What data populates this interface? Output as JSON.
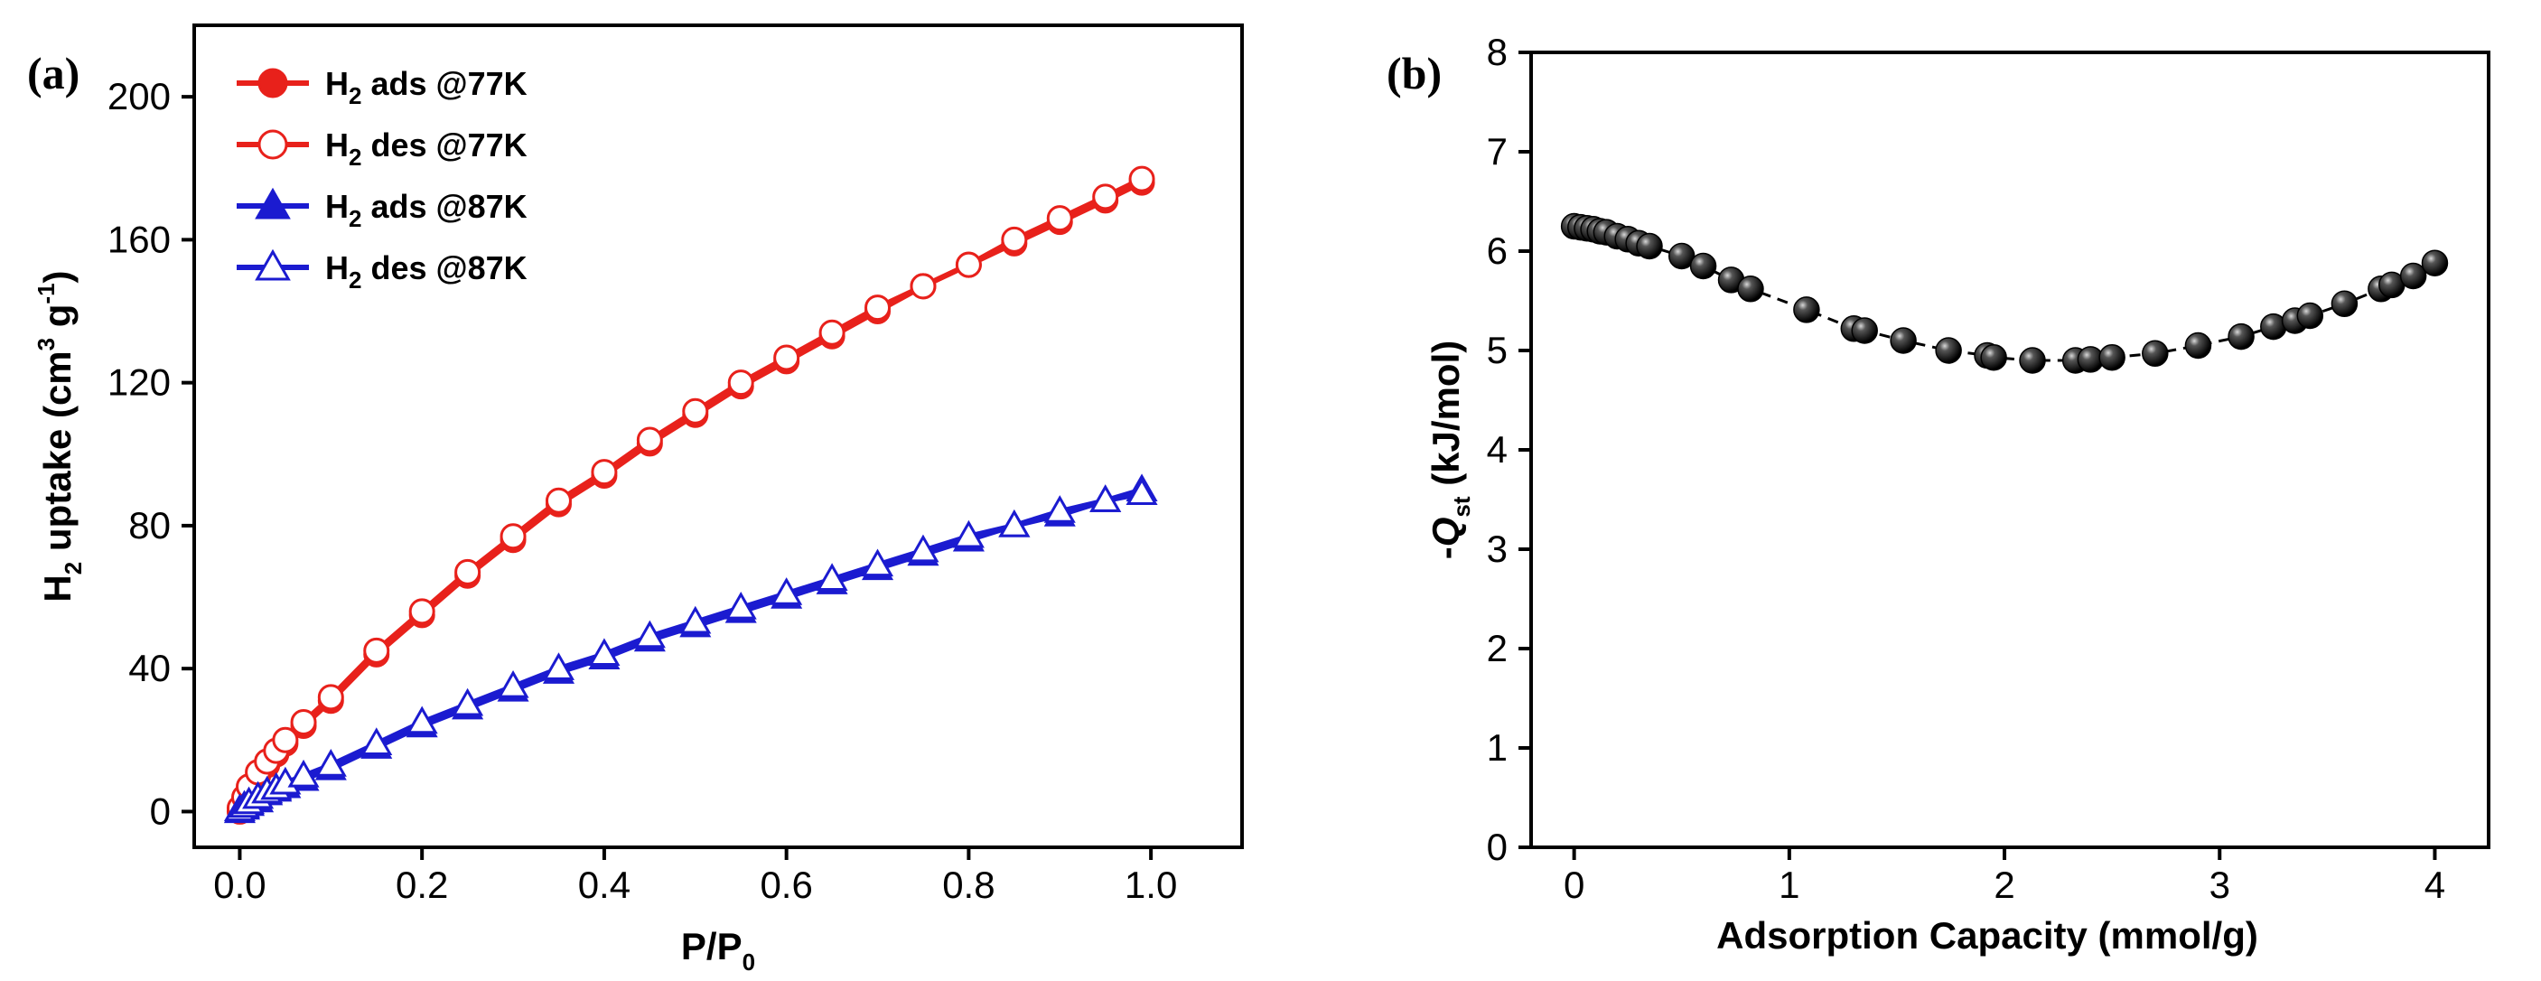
{
  "chart_data": [
    {
      "panel": "(a)",
      "type": "line",
      "xlabel": "P/P",
      "xlabel_sub": "0",
      "ylabel_main": "H",
      "ylabel_sub": "2",
      "ylabel_rest": " uptake (cm",
      "ylabel_sup": "3",
      "ylabel_unit": " g",
      "ylabel_sup2": "-1",
      "ylabel_close": ")",
      "xlim": [
        -0.05,
        1.1
      ],
      "ylim": [
        -10,
        220
      ],
      "xticks": [
        "0.0",
        "0.2",
        "0.4",
        "0.6",
        "0.8",
        "1.0"
      ],
      "yticks": [
        "0",
        "40",
        "80",
        "120",
        "160",
        "200"
      ],
      "series": [
        {
          "name_main": "H",
          "name_sub": "2",
          "name_rest": " ads @77K",
          "color": "#e8211b",
          "marker": "circle",
          "filled": true,
          "x": [
            0.0,
            0.005,
            0.01,
            0.02,
            0.03,
            0.04,
            0.05,
            0.07,
            0.1,
            0.15,
            0.2,
            0.25,
            0.3,
            0.35,
            0.4,
            0.45,
            0.5,
            0.55,
            0.6,
            0.65,
            0.7,
            0.75,
            0.8,
            0.85,
            0.9,
            0.95,
            0.99
          ],
          "y": [
            0,
            3,
            6,
            10,
            13,
            16,
            19,
            24,
            31,
            44,
            55,
            66,
            76,
            86,
            94,
            103,
            111,
            119,
            126,
            133,
            140,
            147,
            153,
            159,
            165,
            171,
            176
          ]
        },
        {
          "name_main": "H",
          "name_sub": "2",
          "name_rest": " des @77K",
          "color": "#e8211b",
          "marker": "circle",
          "filled": false,
          "x": [
            0.0,
            0.005,
            0.01,
            0.02,
            0.03,
            0.04,
            0.05,
            0.07,
            0.1,
            0.15,
            0.2,
            0.25,
            0.3,
            0.35,
            0.4,
            0.45,
            0.5,
            0.55,
            0.6,
            0.65,
            0.7,
            0.75,
            0.8,
            0.85,
            0.9,
            0.95,
            0.99
          ],
          "y": [
            1,
            4,
            7,
            11,
            14,
            17,
            20,
            25,
            32,
            45,
            56,
            67,
            77,
            87,
            95,
            104,
            112,
            120,
            127,
            134,
            141,
            147,
            153,
            160,
            166,
            172,
            177
          ]
        },
        {
          "name_main": "H",
          "name_sub": "2",
          "name_rest": " ads @87K",
          "color": "#1b1bd0",
          "marker": "triangle",
          "filled": true,
          "x": [
            0.0,
            0.005,
            0.01,
            0.02,
            0.03,
            0.04,
            0.05,
            0.07,
            0.1,
            0.15,
            0.2,
            0.25,
            0.3,
            0.35,
            0.4,
            0.45,
            0.5,
            0.55,
            0.6,
            0.65,
            0.7,
            0.75,
            0.8,
            0.85,
            0.9,
            0.95,
            0.99
          ],
          "y": [
            0,
            1,
            2,
            3,
            5,
            6,
            7,
            9,
            12,
            18,
            24,
            29,
            34,
            39,
            43,
            48,
            52,
            56,
            60,
            64,
            68,
            72,
            76,
            80,
            83,
            87,
            90
          ]
        },
        {
          "name_main": "H",
          "name_sub": "2",
          "name_rest": " des @87K",
          "color": "#1b1bd0",
          "marker": "triangle",
          "filled": false,
          "x": [
            0.0,
            0.005,
            0.01,
            0.02,
            0.03,
            0.04,
            0.05,
            0.07,
            0.1,
            0.15,
            0.2,
            0.25,
            0.3,
            0.35,
            0.4,
            0.45,
            0.5,
            0.55,
            0.6,
            0.65,
            0.7,
            0.75,
            0.8,
            0.85,
            0.9,
            0.95,
            0.99
          ],
          "y": [
            0.5,
            1.5,
            2.5,
            4,
            5.5,
            6.5,
            8,
            10,
            13,
            19,
            25,
            30,
            35,
            40,
            44,
            49,
            53,
            57,
            61,
            65,
            69,
            73,
            77,
            80,
            84,
            87,
            89
          ]
        }
      ]
    },
    {
      "panel": "(b)",
      "type": "scatter",
      "xlabel": "Adsorption Capacity (mmol/g)",
      "ylabel_prefix": "-",
      "ylabel_q": "Q",
      "ylabel_sub": "st",
      "ylabel_rest": " (kJ/mol)",
      "xlim": [
        -0.2,
        4.25
      ],
      "ylim": [
        0,
        8
      ],
      "xticks": [
        "0",
        "1",
        "2",
        "3",
        "4"
      ],
      "yticks": [
        "0",
        "1",
        "2",
        "3",
        "4",
        "5",
        "6",
        "7",
        "8"
      ],
      "series": [
        {
          "name": "Qst",
          "color": "#000000",
          "marker": "sphere",
          "x": [
            0.0,
            0.03,
            0.06,
            0.09,
            0.12,
            0.15,
            0.2,
            0.25,
            0.3,
            0.35,
            0.5,
            0.6,
            0.73,
            0.82,
            1.08,
            1.3,
            1.35,
            1.53,
            1.74,
            1.92,
            1.95,
            2.13,
            2.33,
            2.4,
            2.5,
            2.7,
            2.9,
            3.1,
            3.25,
            3.35,
            3.42,
            3.58,
            3.75,
            3.8,
            3.9,
            4.0
          ],
          "y": [
            6.25,
            6.24,
            6.23,
            6.22,
            6.2,
            6.19,
            6.15,
            6.12,
            6.08,
            6.05,
            5.95,
            5.85,
            5.71,
            5.62,
            5.41,
            5.22,
            5.2,
            5.1,
            5.0,
            4.95,
            4.93,
            4.9,
            4.9,
            4.91,
            4.93,
            4.97,
            5.05,
            5.14,
            5.24,
            5.3,
            5.35,
            5.47,
            5.62,
            5.66,
            5.75,
            5.88
          ]
        }
      ]
    }
  ]
}
